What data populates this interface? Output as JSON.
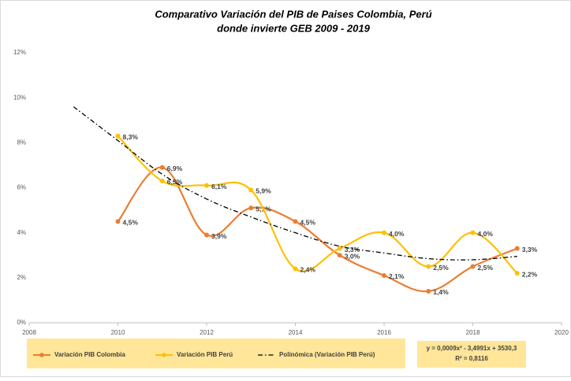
{
  "chart_data": {
    "type": "line",
    "title": [
      "Comparativo  Variación del PIB de Paises Colombia, Perú",
      "donde invierte GEB 2009 - 2019"
    ],
    "xlim": [
      2008,
      2020
    ],
    "xticks": [
      2008,
      2010,
      2012,
      2014,
      2016,
      2018,
      2020
    ],
    "ylim": [
      0,
      12
    ],
    "yticks": [
      {
        "value": 0,
        "label": "0%"
      },
      {
        "value": 2,
        "label": "2%"
      },
      {
        "value": 4,
        "label": "4%"
      },
      {
        "value": 6,
        "label": "6%"
      },
      {
        "value": 8,
        "label": "8%"
      },
      {
        "value": 10,
        "label": "10%"
      },
      {
        "value": 12,
        "label": "12%"
      }
    ],
    "grid": false,
    "series": [
      {
        "name": "Variación PIB Colombia",
        "color": "#ed7d31",
        "marker": true,
        "x": [
          2010,
          2011,
          2012,
          2013,
          2014,
          2015,
          2016,
          2017,
          2018,
          2019
        ],
        "values": [
          4.5,
          6.9,
          3.9,
          5.1,
          4.5,
          3.0,
          2.1,
          1.4,
          2.5,
          3.3
        ],
        "value_labels": [
          "4,5%",
          "6,9%",
          "3,9%",
          "5,1%",
          "4,5%",
          "3,0%",
          "2,1%",
          "1,4%",
          "2,5%",
          "3,3%"
        ]
      },
      {
        "name": "Variación PIB Perú",
        "color": "#ffc000",
        "marker": true,
        "x": [
          2010,
          2011,
          2012,
          2013,
          2014,
          2015,
          2016,
          2017,
          2018,
          2019
        ],
        "values": [
          8.3,
          6.3,
          6.1,
          5.9,
          2.4,
          3.3,
          4.0,
          2.5,
          4.0,
          2.2
        ],
        "value_labels": [
          "8,3%",
          "6,3%",
          "6,1%",
          "5,9%",
          "2,4%",
          "3,3%",
          "4,0%",
          "2,5%",
          "4,0%",
          "2,2%"
        ]
      },
      {
        "name": "Polinómica (Variación PIB Perú)",
        "color": "#000000",
        "marker": false,
        "dash": "6 3 1.5 3",
        "x": [
          2009,
          2010,
          2011,
          2012,
          2013,
          2014,
          2015,
          2016,
          2017,
          2018,
          2019
        ],
        "values": [
          9.6,
          8.1,
          6.6,
          5.5,
          4.7,
          4.0,
          3.4,
          3.1,
          2.85,
          2.8,
          2.95
        ]
      }
    ],
    "equation": [
      "y = 0,0009x² - 3,4991x + 3530,3",
      "R² = 0,8116"
    ]
  }
}
